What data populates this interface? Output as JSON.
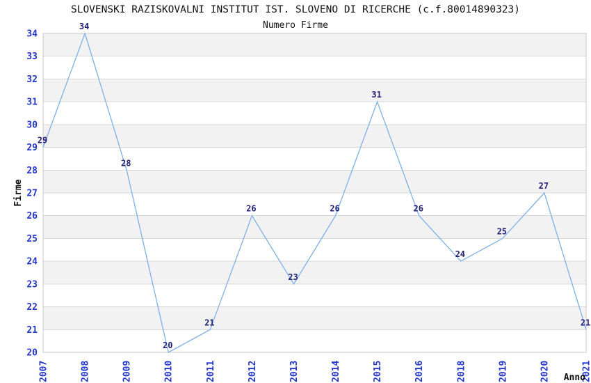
{
  "chart_data": {
    "type": "line",
    "title": "SLOVENSKI RAZISKOVALNI INSTITUT IST. SLOVENO DI RICERCHE (c.f.80014890323)",
    "subtitle": "Numero Firme",
    "xlabel": "Anno",
    "ylabel": "Firme",
    "categories": [
      "2007",
      "2008",
      "2009",
      "2010",
      "2011",
      "2012",
      "2013",
      "2014",
      "2015",
      "2016",
      "2018",
      "2019",
      "2020",
      "2021"
    ],
    "values": [
      29,
      34,
      28,
      20,
      21,
      26,
      23,
      26,
      31,
      26,
      24,
      25,
      27,
      21
    ],
    "ylim": [
      20,
      34
    ],
    "ytick_step": 1,
    "grid": true,
    "legend": false,
    "banded_rows": true,
    "colors": {
      "line": "#7cafe8",
      "tick_label": "#2236cc",
      "data_label": "#222277",
      "grid_line": "#d9d9d9",
      "band_fill": "#f2f2f2",
      "plot_border": "#c9c9c9",
      "title_text": "#111111",
      "axis_title_text": "#111111",
      "background": "#ffffff"
    }
  }
}
